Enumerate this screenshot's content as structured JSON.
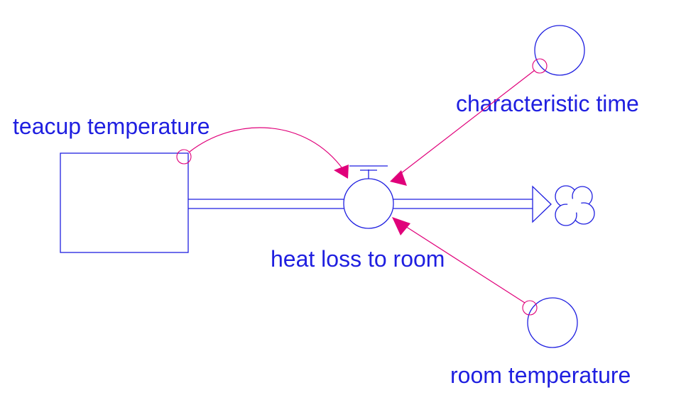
{
  "diagram": {
    "stock": {
      "label": "teacup temperature"
    },
    "flow": {
      "label": "heat loss to room"
    },
    "auxiliaries": {
      "characteristic_time": "characteristic time",
      "room_temperature": "room temperature"
    },
    "sink": {
      "icon": "cloud-sink-icon"
    },
    "links": [
      {
        "from": "teacup temperature",
        "to": "heat loss to room"
      },
      {
        "from": "characteristic time",
        "to": "heat loss to room"
      },
      {
        "from": "room temperature",
        "to": "heat loss to room"
      }
    ],
    "colors": {
      "structure": "#1f1fe0",
      "link": "#e0007a",
      "background": "#ffffff"
    }
  }
}
